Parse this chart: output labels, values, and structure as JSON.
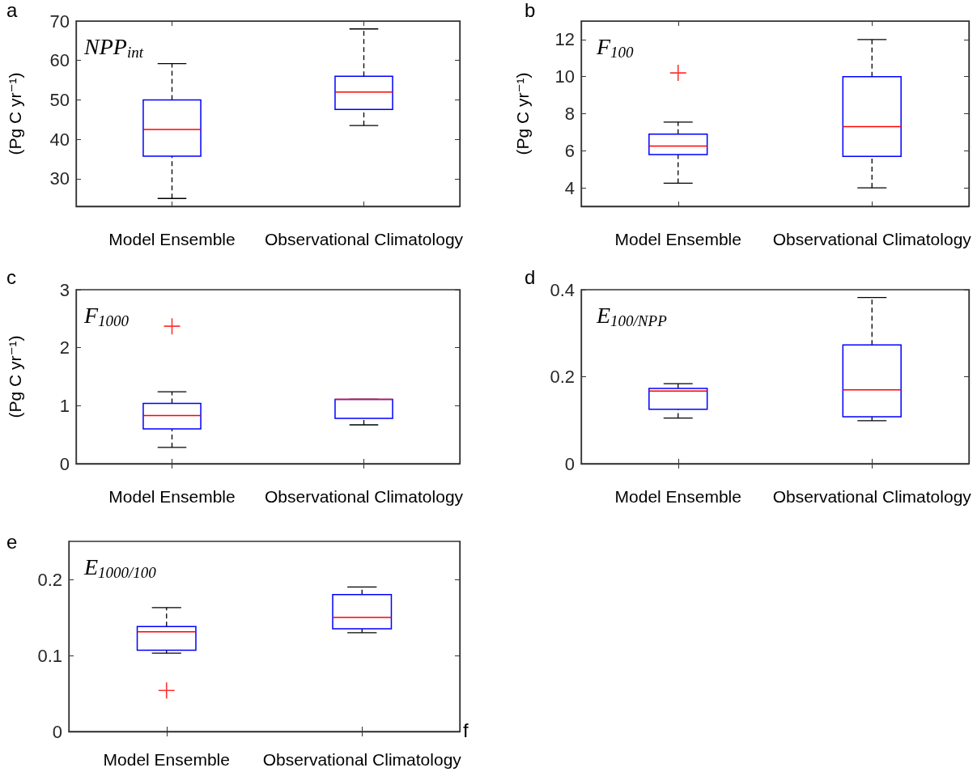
{
  "chart_data": [
    {
      "type": "box",
      "title": "NPP$_{int}$",
      "ylabel": "(Pg C yr⁻¹)",
      "annotations": [
        "a"
      ],
      "categories": [
        "Model Ensemble",
        "Observational Climatology"
      ],
      "ylim": [
        23,
        70
      ],
      "yticks": [
        30,
        40,
        50,
        60,
        70
      ],
      "grid": false,
      "series": [
        {
          "color": "#0000ff",
          "boxes": [
            {
              "low": 25,
              "q1": 35.7,
              "median": 42.5,
              "q3": 50,
              "high": 59.2
            },
            {
              "low": 43.5,
              "q1": 47.6,
              "median": 52,
              "q3": 56,
              "high": 68
            }
          ]
        }
      ]
    },
    {
      "type": "box",
      "title": "F$_{100}$",
      "ylabel": "(Pg C yr⁻¹)",
      "annotations": [
        "b"
      ],
      "categories": [
        "Model Ensemble",
        "Observational Climatology"
      ],
      "ylim": [
        3,
        13
      ],
      "yticks": [
        4,
        6,
        8,
        10,
        12
      ],
      "grid": false,
      "series": [
        {
          "color": "#0000ff",
          "boxes": [
            {
              "low": 4.25,
              "q1": 5.8,
              "median": 6.25,
              "q3": 6.9,
              "high": 7.55,
              "outliers": [
                10.2
              ]
            },
            {
              "low": 4,
              "q1": 5.7,
              "median": 7.3,
              "q3": 10,
              "high": 12
            }
          ]
        }
      ]
    },
    {
      "type": "box",
      "title": "F$_{1000}$",
      "ylabel": "(Pg C yr⁻¹)",
      "annotations": [
        "c"
      ],
      "categories": [
        "Model Ensemble",
        "Observational Climatology"
      ],
      "ylim": [
        0,
        3
      ],
      "yticks": [
        0,
        1,
        2,
        3
      ],
      "grid": false,
      "series": [
        {
          "color": "#0000ff",
          "boxes": [
            {
              "low": 0.28,
              "q1": 0.6,
              "median": 0.83,
              "q3": 1.04,
              "high": 1.24,
              "outliers": [
                2.37
              ]
            },
            {
              "low": 0.67,
              "q1": 0.78,
              "median": 1.11,
              "q3": 1.11,
              "high": 1.11
            }
          ]
        }
      ]
    },
    {
      "type": "box",
      "title": "E$_{100/NPP}$",
      "annotations": [
        "d"
      ],
      "categories": [
        "Model Ensemble",
        "Observational Climatology"
      ],
      "ylim": [
        0,
        0.4
      ],
      "yticks": [
        0,
        0.2,
        0.4
      ],
      "grid": false,
      "series": [
        {
          "color": "#0000ff",
          "boxes": [
            {
              "low": 0.105,
              "q1": 0.125,
              "median": 0.167,
              "q3": 0.173,
              "high": 0.184
            },
            {
              "low": 0.099,
              "q1": 0.108,
              "median": 0.17,
              "q3": 0.273,
              "high": 0.382
            }
          ]
        }
      ]
    },
    {
      "type": "box",
      "title": "E$_{1000/100}$",
      "annotations": [
        "e",
        "f"
      ],
      "categories": [
        "Model Ensemble",
        "Observational Climatology"
      ],
      "ylim": [
        0,
        0.25
      ],
      "yticks": [
        0,
        0.1,
        0.2
      ],
      "grid": false,
      "series": [
        {
          "color": "#0000ff",
          "boxes": [
            {
              "low": 0.103,
              "q1": 0.107,
              "median": 0.131,
              "q3": 0.138,
              "high": 0.163,
              "outliers": [
                0.054
              ]
            },
            {
              "low": 0.13,
              "q1": 0.135,
              "median": 0.15,
              "q3": 0.18,
              "high": 0.19
            }
          ]
        }
      ]
    }
  ]
}
